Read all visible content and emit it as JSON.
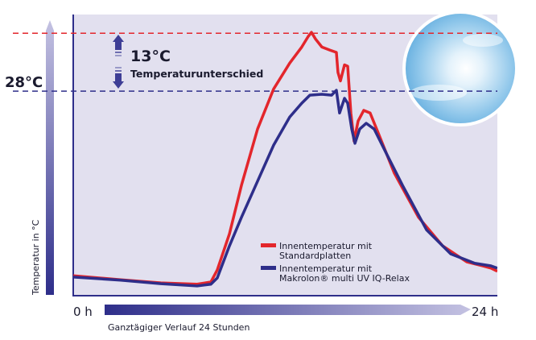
{
  "chart_data": {
    "type": "line",
    "title": "",
    "xlabel": "Ganztägiger Verlauf 24 Stunden",
    "ylabel": "Temperatur in °C",
    "x_start_label": "0 h",
    "x_end_label": "24 h",
    "xlim": [
      0,
      24
    ],
    "ylim": [
      -17.7,
      45.2
    ],
    "grid": false,
    "legend_position": "bottom-center",
    "reference_lines": [
      {
        "label": "",
        "value": 41,
        "color": "#e3262c"
      },
      {
        "label": "28°C",
        "value": 28,
        "color": "#2e2e8a"
      }
    ],
    "annotation": {
      "value": "13°C",
      "text": "Temperaturunterschied"
    },
    "series": [
      {
        "name": "Innentemperatur mit Standardplatten",
        "color": "#e3262c",
        "x": [
          0,
          2.69,
          4.96,
          7.01,
          7.79,
          8.15,
          8.84,
          9.52,
          10.43,
          11.34,
          12.25,
          12.93,
          13.3,
          13.48,
          13.71,
          14.07,
          14.53,
          14.89,
          14.98,
          15.12,
          15.35,
          15.53,
          15.71,
          15.89,
          16.12,
          16.44,
          16.8,
          17.26,
          18.17,
          19.54,
          20.9,
          22.27,
          23.18,
          23.64,
          24
        ],
        "y": [
          -13.4,
          -14.3,
          -15.0,
          -15.3,
          -14.8,
          -12.1,
          -4.0,
          6.9,
          19.5,
          28.5,
          34.3,
          37.9,
          40.3,
          41.2,
          39.7,
          37.9,
          37.2,
          36.7,
          32.2,
          30.3,
          33.9,
          33.6,
          23.1,
          16.8,
          21.3,
          23.7,
          23.1,
          18.6,
          9.6,
          -0.3,
          -6.7,
          -10.3,
          -11.2,
          -11.7,
          -12.4
        ]
      },
      {
        "name": "Innentemperatur mit Makrolon® multi UV IQ-Relax",
        "color": "#2e2e8a",
        "x": [
          0,
          2.69,
          4.96,
          7.01,
          7.79,
          8.15,
          8.84,
          9.52,
          10.43,
          11.34,
          12.25,
          12.93,
          13.39,
          14.07,
          14.62,
          14.89,
          15.07,
          15.35,
          15.53,
          15.76,
          15.94,
          16.21,
          16.58,
          17.03,
          17.71,
          18.63,
          19.99,
          21.36,
          22.72,
          23.64,
          24
        ],
        "y": [
          -13.7,
          -14.4,
          -15.2,
          -15.7,
          -15.3,
          -13.9,
          -6.7,
          -0.3,
          7.8,
          15.9,
          22.2,
          25.3,
          27.1,
          27.3,
          27.1,
          28.2,
          23.1,
          26.4,
          25.3,
          19.5,
          16.3,
          19.5,
          20.8,
          19.5,
          14.1,
          6.9,
          -3.1,
          -8.5,
          -10.6,
          -11.2,
          -11.7
        ]
      }
    ]
  }
}
